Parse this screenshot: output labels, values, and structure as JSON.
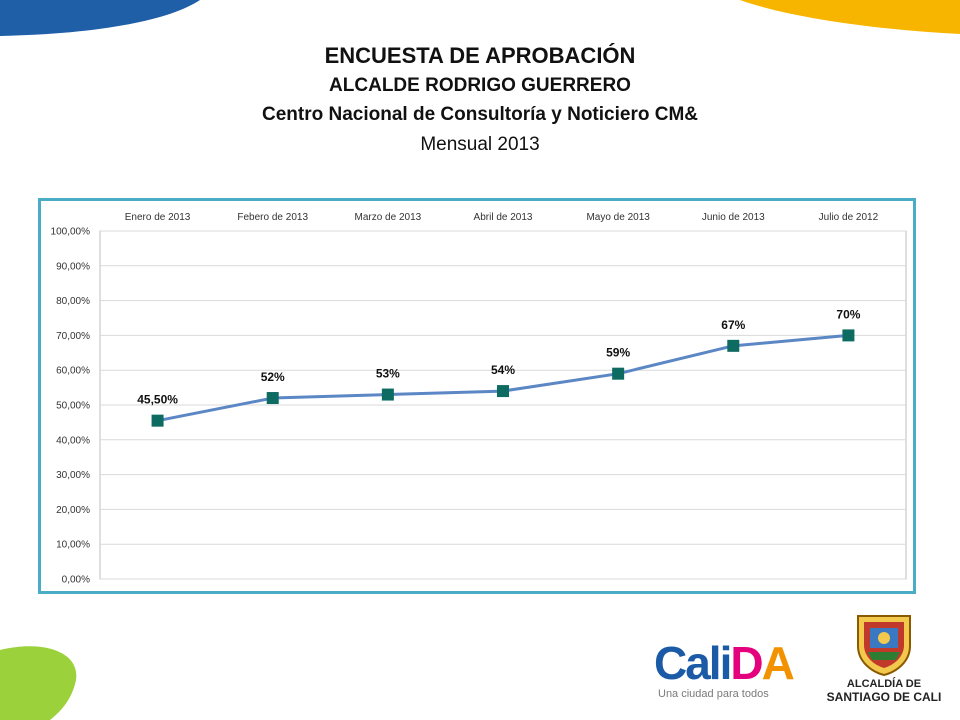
{
  "header": {
    "title": "ENCUESTA DE APROBACIÓN",
    "subtitle": "ALCALDE RODRIGO GUERRERO",
    "source": "Centro Nacional de Consultoría y Noticiero CM&",
    "period": "Mensual 2013"
  },
  "chart_data": {
    "type": "line",
    "categories": [
      "Enero de 2013",
      "Febero de 2013",
      "Marzo de 2013",
      "Abril de 2013",
      "Mayo de 2013",
      "Junio de 2013",
      "Julio de 2012"
    ],
    "values": [
      45.5,
      52,
      53,
      54,
      59,
      67,
      70
    ],
    "data_labels": [
      "45,50%",
      "52%",
      "53%",
      "54%",
      "59%",
      "67%",
      "70%"
    ],
    "y_ticks": [
      "0,00%",
      "10,00%",
      "20,00%",
      "30,00%",
      "40,00%",
      "50,00%",
      "60,00%",
      "70,00%",
      "80,00%",
      "90,00%",
      "100,00%"
    ],
    "ylim": [
      0,
      100
    ],
    "x_axis_position": "top",
    "grid": true,
    "colors": {
      "line": "#5b87c5",
      "marker": "#0e6b62",
      "border": "#4bacc6"
    }
  },
  "logos": {
    "calida": {
      "word_parts": [
        "Cali",
        "D",
        "A"
      ],
      "tagline": "Una ciudad para todos"
    },
    "alcaldia": {
      "line1": "ALCALDÍA DE",
      "line2": "SANTIAGO DE CALI"
    }
  }
}
